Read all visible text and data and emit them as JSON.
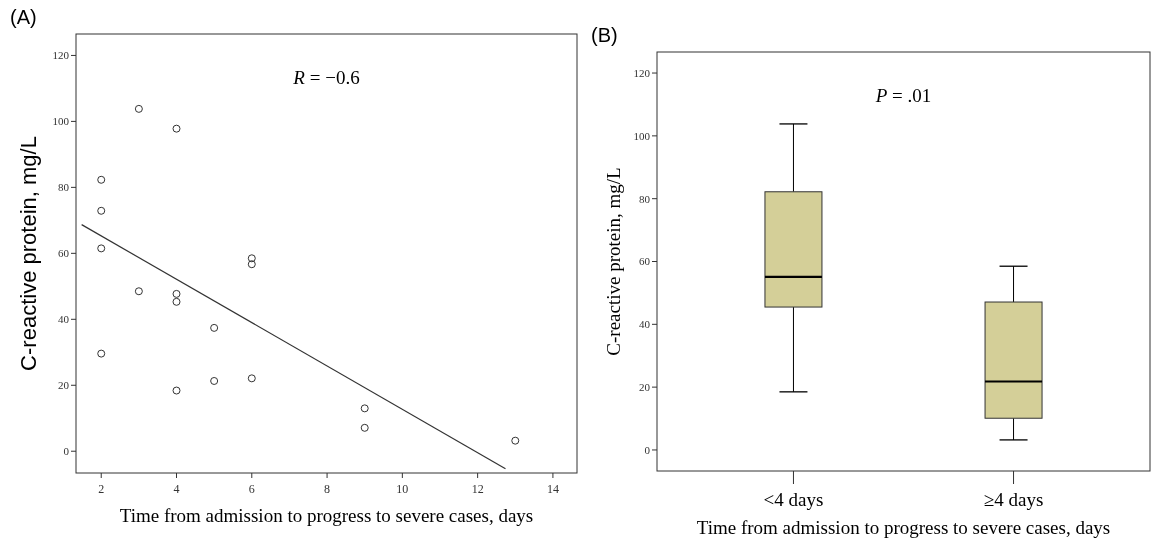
{
  "chart_data": [
    {
      "type": "scatter",
      "title": "(A)",
      "xlabel": "Time from admission to progress to severe cases, days",
      "ylabel": "C-reactive protein, mg/L",
      "annotations": [
        "R = −0.6"
      ],
      "xlim": [
        1.33,
        14.64
      ],
      "ylim": [
        -6.6,
        126.5
      ],
      "xticks": [
        2,
        4,
        6,
        8,
        10,
        12,
        14
      ],
      "yticks": [
        0,
        20,
        40,
        60,
        80,
        100,
        120
      ],
      "series": [
        {
          "marker": "circle",
          "color": "#333333",
          "x": [
            2,
            2,
            2,
            2,
            3,
            3,
            4,
            4,
            4,
            4,
            5,
            5,
            6,
            6,
            6,
            9,
            9,
            13
          ],
          "values": [
            82.3,
            72.9,
            61.5,
            29.6,
            103.8,
            48.5,
            97.8,
            47.7,
            45.3,
            18.4,
            37.4,
            21.3,
            58.5,
            56.7,
            22.1,
            13.0,
            7.1,
            3.2
          ]
        },
        {
          "type": "line",
          "color": "#333333",
          "x": [
            1.48,
            12.74
          ],
          "values": [
            68.7,
            -5.3
          ]
        }
      ]
    },
    {
      "type": "box",
      "title": "(B)",
      "xlabel": "Time from admission to progress to severe cases, days",
      "ylabel": "C-reactive protein, mg/L",
      "annotations": [
        "P = .01"
      ],
      "categories": [
        "<4 days",
        "≥4 days"
      ],
      "ylim": [
        -6.7,
        126.7
      ],
      "yticks": [
        0,
        20,
        40,
        60,
        80,
        100,
        120
      ],
      "series": [
        {
          "color": "#d4cf98",
          "boxes": [
            {
              "low": 18.5,
              "q1": 45.5,
              "median": 55.1,
              "q3": 82.2,
              "high": 103.8
            },
            {
              "low": 3.2,
              "q1": 10.1,
              "median": 21.8,
              "q3": 47.1,
              "high": 58.5
            }
          ]
        }
      ]
    }
  ]
}
